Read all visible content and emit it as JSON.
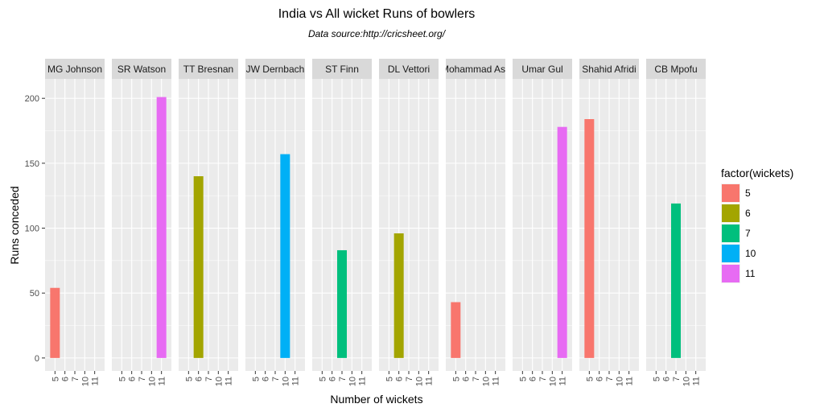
{
  "chart_data": {
    "type": "bar",
    "title": "India vs All wicket Runs of bowlers",
    "subtitle": "Data source:http://cricsheet.org/",
    "xlabel": "Number of wickets",
    "ylabel": "Runs conceded",
    "ylim": [
      -10,
      215
    ],
    "y_ticks": [
      0,
      50,
      100,
      150,
      200
    ],
    "x_categories": [
      "5",
      "6",
      "7",
      "10",
      "11"
    ],
    "legend": {
      "title": "factor(wickets)",
      "placement": "right",
      "items": [
        {
          "label": "5",
          "color": "#F8766D"
        },
        {
          "label": "6",
          "color": "#A3A500"
        },
        {
          "label": "7",
          "color": "#00BF7D"
        },
        {
          "label": "10",
          "color": "#00B0F6"
        },
        {
          "label": "11",
          "color": "#E76BF3"
        }
      ]
    },
    "panels": [
      {
        "bowler": "MG Johnson",
        "wickets": "5",
        "runs": 54
      },
      {
        "bowler": "SR Watson",
        "wickets": "11",
        "runs": 201
      },
      {
        "bowler": "TT Bresnan",
        "wickets": "6",
        "runs": 140
      },
      {
        "bowler": "JW Dernbach",
        "wickets": "10",
        "runs": 157
      },
      {
        "bowler": "ST Finn",
        "wickets": "7",
        "runs": 83
      },
      {
        "bowler": "DL Vettori",
        "wickets": "6",
        "runs": 96
      },
      {
        "bowler": "Mohammad Asif",
        "wickets": "5",
        "runs": 43
      },
      {
        "bowler": "Umar Gul",
        "wickets": "11",
        "runs": 178
      },
      {
        "bowler": "Shahid Afridi",
        "wickets": "5",
        "runs": 184
      },
      {
        "bowler": "CB Mpofu",
        "wickets": "7",
        "runs": 119
      }
    ],
    "grid": true,
    "panel_background": "#EBEBEB",
    "strip_background": "#D9D9D9"
  }
}
